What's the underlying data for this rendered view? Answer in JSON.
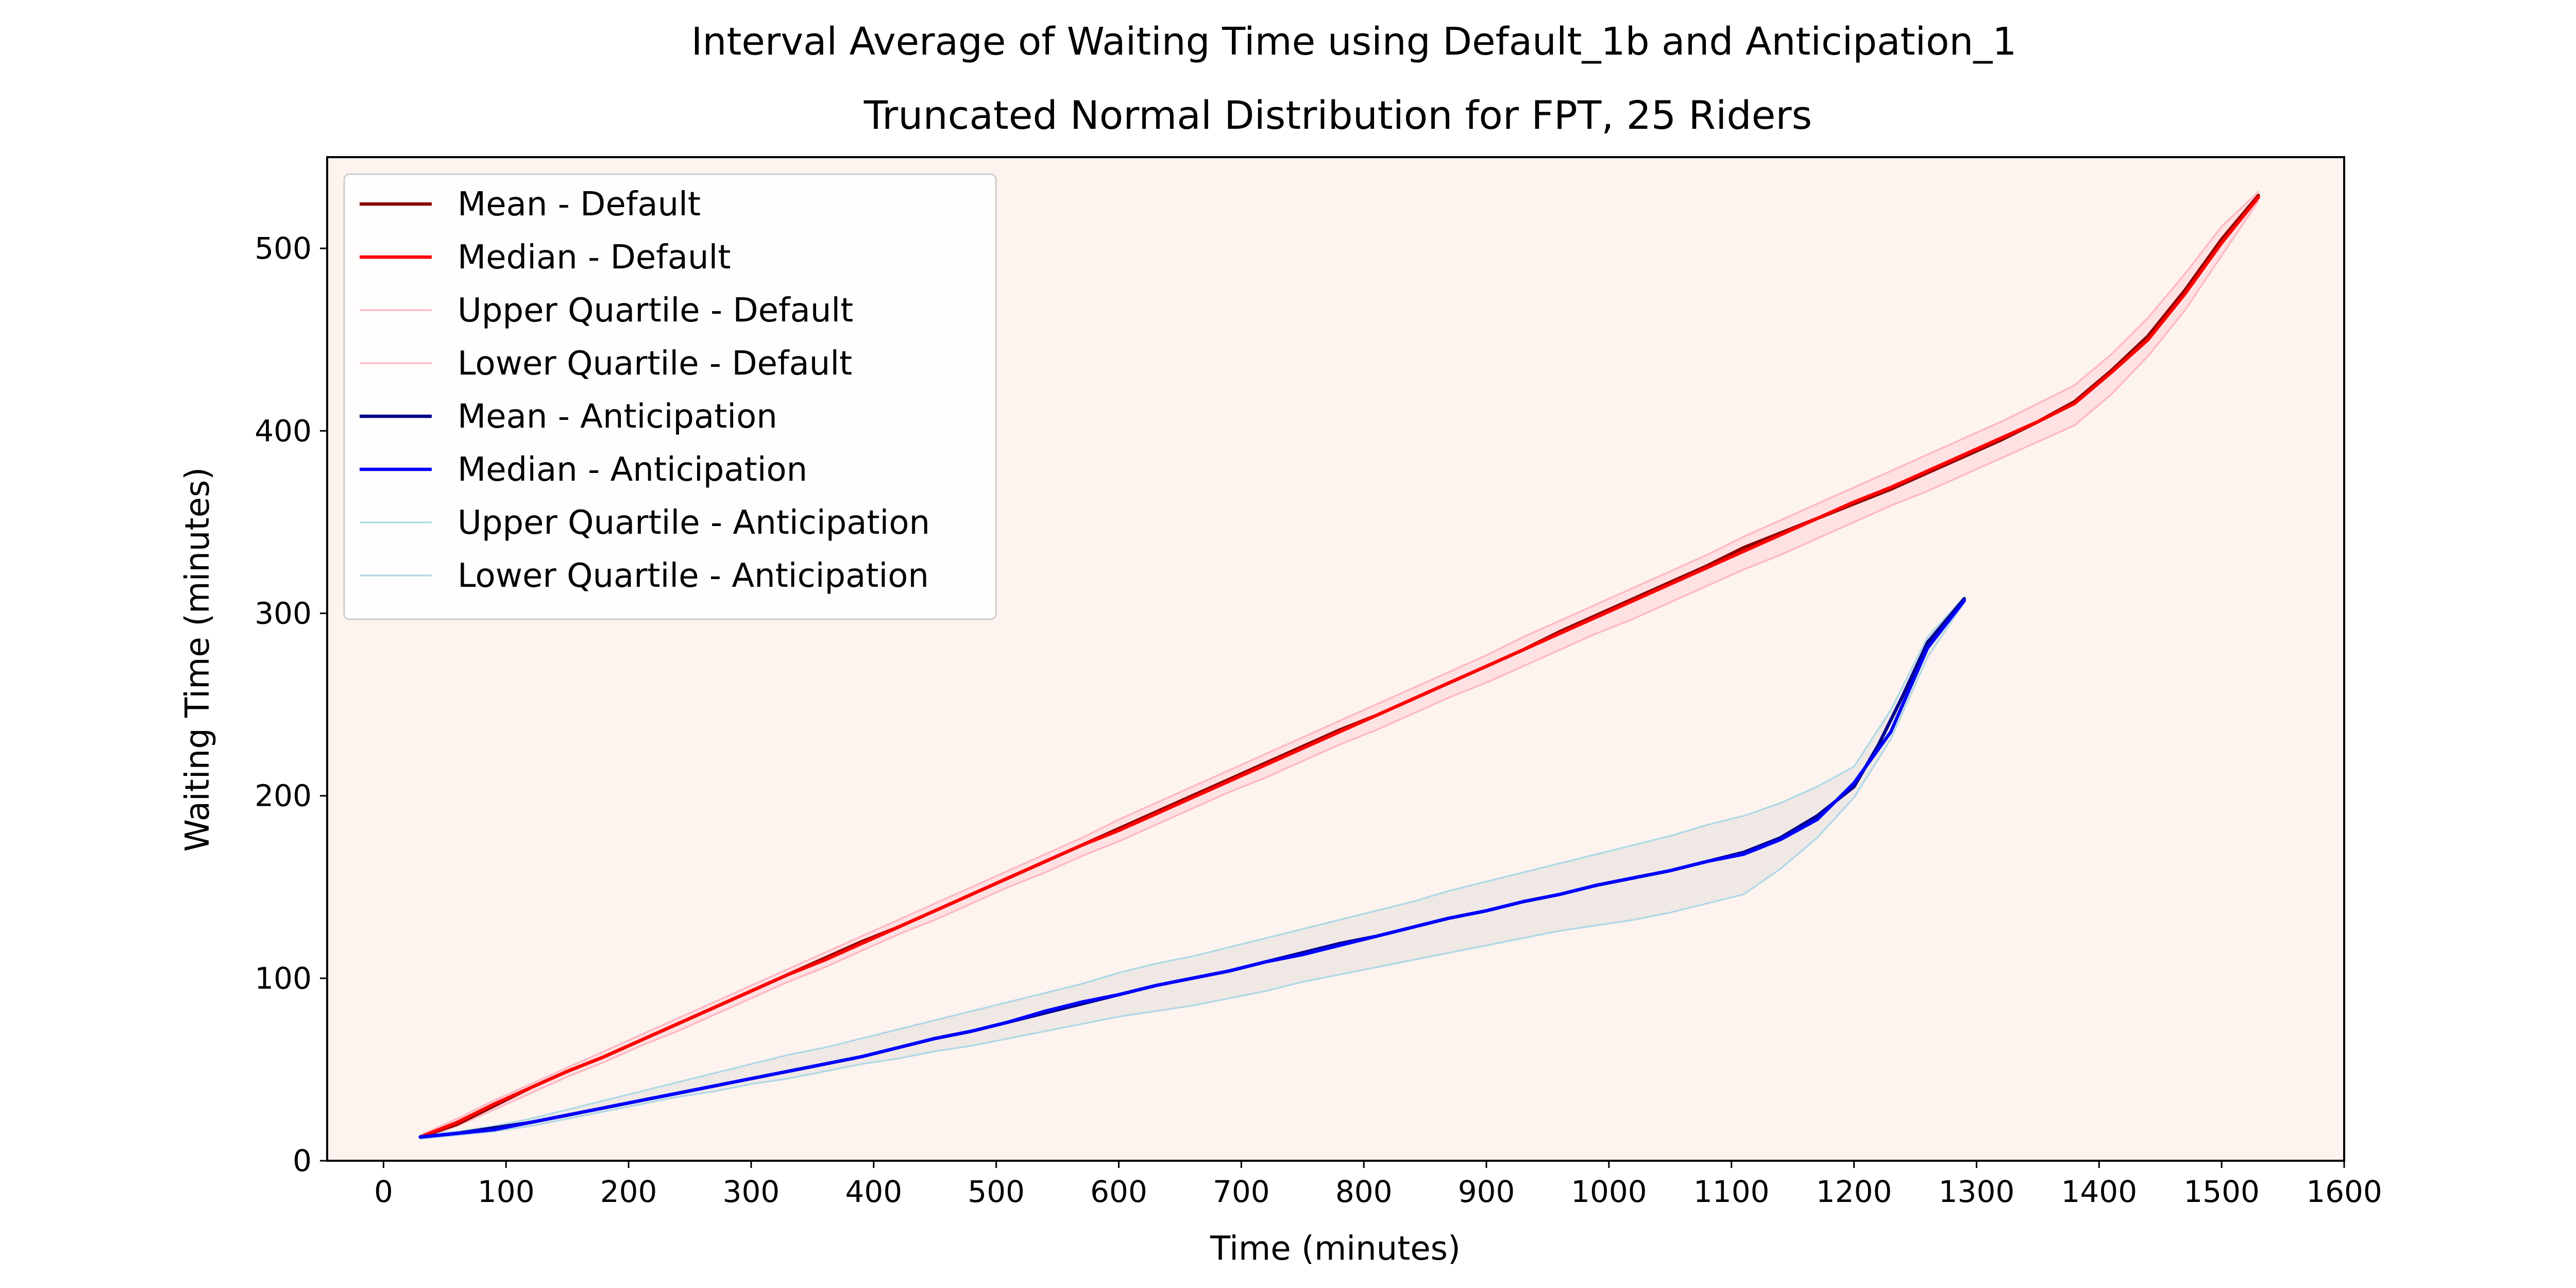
{
  "chart_data": {
    "type": "line",
    "title": "Interval Average of Waiting Time using Default_1b and Anticipation_1",
    "subtitle": "Truncated Normal Distribution for FPT, 25 Riders",
    "xlabel": "Time (minutes)",
    "ylabel": "Waiting Time (minutes)",
    "xlim": [
      -46,
      1600
    ],
    "ylim": [
      0,
      550
    ],
    "xticks": [
      0,
      100,
      200,
      300,
      400,
      500,
      600,
      700,
      800,
      900,
      1000,
      1100,
      1200,
      1300,
      1400,
      1500,
      1600
    ],
    "yticks": [
      0,
      100,
      200,
      300,
      400,
      500
    ],
    "grid": false,
    "legend_position": "top-left",
    "plot_background": "#fdf3ef",
    "series": [
      {
        "name": "Mean - Default",
        "color": "#8b0000",
        "width": 5,
        "x": [
          30,
          60,
          90,
          120,
          150,
          180,
          210,
          240,
          270,
          300,
          330,
          360,
          390,
          420,
          450,
          480,
          510,
          540,
          570,
          600,
          630,
          660,
          690,
          720,
          750,
          780,
          810,
          840,
          870,
          900,
          930,
          960,
          990,
          1020,
          1050,
          1080,
          1110,
          1140,
          1170,
          1200,
          1230,
          1260,
          1290,
          1320,
          1350,
          1380,
          1410,
          1440,
          1470,
          1500,
          1530
        ],
        "y": [
          13,
          20,
          30,
          40,
          49,
          57,
          66,
          75,
          84,
          93,
          102,
          111,
          120,
          128,
          137,
          146,
          155,
          164,
          173,
          182,
          191,
          200,
          209,
          218,
          227,
          236,
          244,
          253,
          262,
          271,
          280,
          290,
          299,
          308,
          317,
          326,
          336,
          344,
          352,
          360,
          368,
          377,
          386,
          395,
          405,
          416,
          433,
          452,
          477,
          505,
          529
        ]
      },
      {
        "name": "Median - Default",
        "color": "#ff0000",
        "width": 5,
        "x": [
          30,
          60,
          90,
          120,
          150,
          180,
          210,
          240,
          270,
          300,
          330,
          360,
          390,
          420,
          450,
          480,
          510,
          540,
          570,
          600,
          630,
          660,
          690,
          720,
          750,
          780,
          810,
          840,
          870,
          900,
          930,
          960,
          990,
          1020,
          1050,
          1080,
          1110,
          1140,
          1170,
          1200,
          1230,
          1260,
          1290,
          1320,
          1350,
          1380,
          1410,
          1440,
          1470,
          1500,
          1530
        ],
        "y": [
          13,
          21,
          31,
          40,
          49,
          57,
          66,
          75,
          84,
          93,
          102,
          110,
          119,
          128,
          137,
          146,
          155,
          164,
          173,
          181,
          190,
          199,
          208,
          217,
          226,
          235,
          244,
          253,
          262,
          271,
          280,
          289,
          298,
          307,
          316,
          325,
          334,
          343,
          352,
          361,
          369,
          378,
          387,
          396,
          405,
          415,
          432,
          450,
          475,
          503,
          528
        ]
      },
      {
        "name": "Upper Quartile - Default",
        "color": "#ffb6c1",
        "width": 2.5,
        "x": [
          30,
          60,
          90,
          120,
          150,
          180,
          210,
          240,
          270,
          300,
          330,
          360,
          390,
          420,
          450,
          480,
          510,
          540,
          570,
          600,
          630,
          660,
          690,
          720,
          750,
          780,
          810,
          840,
          870,
          900,
          930,
          960,
          990,
          1020,
          1050,
          1080,
          1110,
          1140,
          1170,
          1200,
          1230,
          1260,
          1290,
          1320,
          1350,
          1380,
          1410,
          1440,
          1470,
          1500,
          1530
        ],
        "y": [
          14,
          23,
          33,
          42,
          51,
          60,
          69,
          78,
          87,
          96,
          105,
          114,
          123,
          132,
          141,
          150,
          159,
          168,
          177,
          187,
          196,
          205,
          214,
          223,
          232,
          241,
          250,
          259,
          268,
          277,
          287,
          296,
          305,
          314,
          323,
          332,
          342,
          351,
          360,
          369,
          378,
          387,
          396,
          405,
          415,
          425,
          442,
          462,
          486,
          512,
          531
        ]
      },
      {
        "name": "Lower Quartile - Default",
        "color": "#ffb6c1",
        "width": 2.5,
        "x": [
          30,
          60,
          90,
          120,
          150,
          180,
          210,
          240,
          270,
          300,
          330,
          360,
          390,
          420,
          450,
          480,
          510,
          540,
          570,
          600,
          630,
          660,
          690,
          720,
          750,
          780,
          810,
          840,
          870,
          900,
          930,
          960,
          990,
          1020,
          1050,
          1080,
          1110,
          1140,
          1170,
          1200,
          1230,
          1260,
          1290,
          1320,
          1350,
          1380,
          1410,
          1440,
          1470,
          1500,
          1530
        ],
        "y": [
          12,
          19,
          28,
          37,
          46,
          54,
          63,
          71,
          80,
          89,
          98,
          106,
          115,
          124,
          132,
          141,
          150,
          158,
          167,
          175,
          184,
          193,
          202,
          210,
          219,
          228,
          236,
          245,
          254,
          262,
          271,
          280,
          289,
          297,
          306,
          315,
          324,
          332,
          341,
          350,
          359,
          367,
          376,
          385,
          394,
          403,
          420,
          441,
          466,
          496,
          526
        ]
      },
      {
        "name": "Mean - Anticipation",
        "color": "#00008b",
        "width": 5,
        "x": [
          30,
          60,
          90,
          120,
          150,
          180,
          210,
          240,
          270,
          300,
          330,
          360,
          390,
          420,
          450,
          480,
          510,
          540,
          570,
          600,
          630,
          660,
          690,
          720,
          750,
          780,
          810,
          840,
          870,
          900,
          930,
          960,
          990,
          1020,
          1050,
          1080,
          1110,
          1140,
          1170,
          1200,
          1220,
          1240,
          1260,
          1290
        ],
        "y": [
          13,
          15,
          18,
          21,
          25,
          29,
          33,
          37,
          41,
          45,
          49,
          53,
          57,
          62,
          67,
          71,
          76,
          81,
          86,
          91,
          96,
          100,
          104,
          109,
          114,
          119,
          123,
          128,
          133,
          137,
          142,
          146,
          151,
          155,
          159,
          164,
          169,
          177,
          189,
          205,
          228,
          255,
          284,
          308
        ]
      },
      {
        "name": "Median - Anticipation",
        "color": "#0000ff",
        "width": 5,
        "x": [
          30,
          60,
          90,
          120,
          150,
          180,
          210,
          240,
          270,
          300,
          330,
          360,
          390,
          420,
          450,
          480,
          510,
          540,
          570,
          600,
          630,
          660,
          690,
          720,
          750,
          780,
          810,
          840,
          870,
          900,
          930,
          960,
          990,
          1020,
          1050,
          1080,
          1110,
          1140,
          1170,
          1200,
          1230,
          1245,
          1260,
          1290
        ],
        "y": [
          13,
          15,
          17,
          21,
          25,
          29,
          33,
          37,
          41,
          45,
          49,
          53,
          57,
          62,
          67,
          71,
          76,
          82,
          87,
          91,
          96,
          100,
          104,
          109,
          113,
          118,
          123,
          128,
          133,
          137,
          142,
          146,
          151,
          155,
          159,
          164,
          168,
          176,
          187,
          207,
          235,
          258,
          281,
          307
        ]
      },
      {
        "name": "Upper Quartile - Anticipation",
        "color": "#add8e6",
        "width": 2.5,
        "x": [
          30,
          60,
          90,
          120,
          150,
          180,
          210,
          240,
          270,
          300,
          330,
          360,
          390,
          420,
          450,
          480,
          510,
          540,
          570,
          600,
          630,
          660,
          690,
          720,
          750,
          780,
          810,
          840,
          870,
          900,
          930,
          960,
          990,
          1020,
          1050,
          1080,
          1110,
          1140,
          1170,
          1200,
          1230,
          1260,
          1290
        ],
        "y": [
          14,
          16,
          19,
          23,
          28,
          33,
          38,
          43,
          48,
          53,
          58,
          62,
          67,
          72,
          77,
          82,
          87,
          92,
          97,
          103,
          108,
          112,
          117,
          122,
          127,
          132,
          137,
          142,
          148,
          153,
          158,
          163,
          168,
          173,
          178,
          184,
          189,
          196,
          205,
          216,
          247,
          287,
          309
        ]
      },
      {
        "name": "Lower Quartile - Anticipation",
        "color": "#add8e6",
        "width": 2.5,
        "x": [
          30,
          60,
          90,
          120,
          150,
          180,
          210,
          240,
          270,
          300,
          330,
          360,
          390,
          420,
          450,
          480,
          510,
          540,
          570,
          600,
          630,
          660,
          690,
          720,
          750,
          780,
          810,
          840,
          870,
          900,
          930,
          960,
          990,
          1020,
          1050,
          1080,
          1110,
          1140,
          1170,
          1200,
          1230,
          1260,
          1290
        ],
        "y": [
          12,
          14,
          16,
          19,
          23,
          27,
          31,
          35,
          38,
          42,
          45,
          49,
          53,
          56,
          60,
          63,
          67,
          71,
          75,
          79,
          82,
          85,
          89,
          93,
          98,
          102,
          106,
          110,
          114,
          118,
          122,
          126,
          129,
          132,
          136,
          141,
          146,
          160,
          177,
          199,
          231,
          276,
          306
        ]
      }
    ],
    "bands": [
      {
        "upper": "Upper Quartile - Default",
        "lower": "Lower Quartile - Default",
        "color": "#ffc0cb",
        "opacity": 0.35
      },
      {
        "upper": "Upper Quartile - Anticipation",
        "lower": "Lower Quartile - Anticipation",
        "color": "#d3d3d3",
        "opacity": 0.35
      }
    ]
  }
}
